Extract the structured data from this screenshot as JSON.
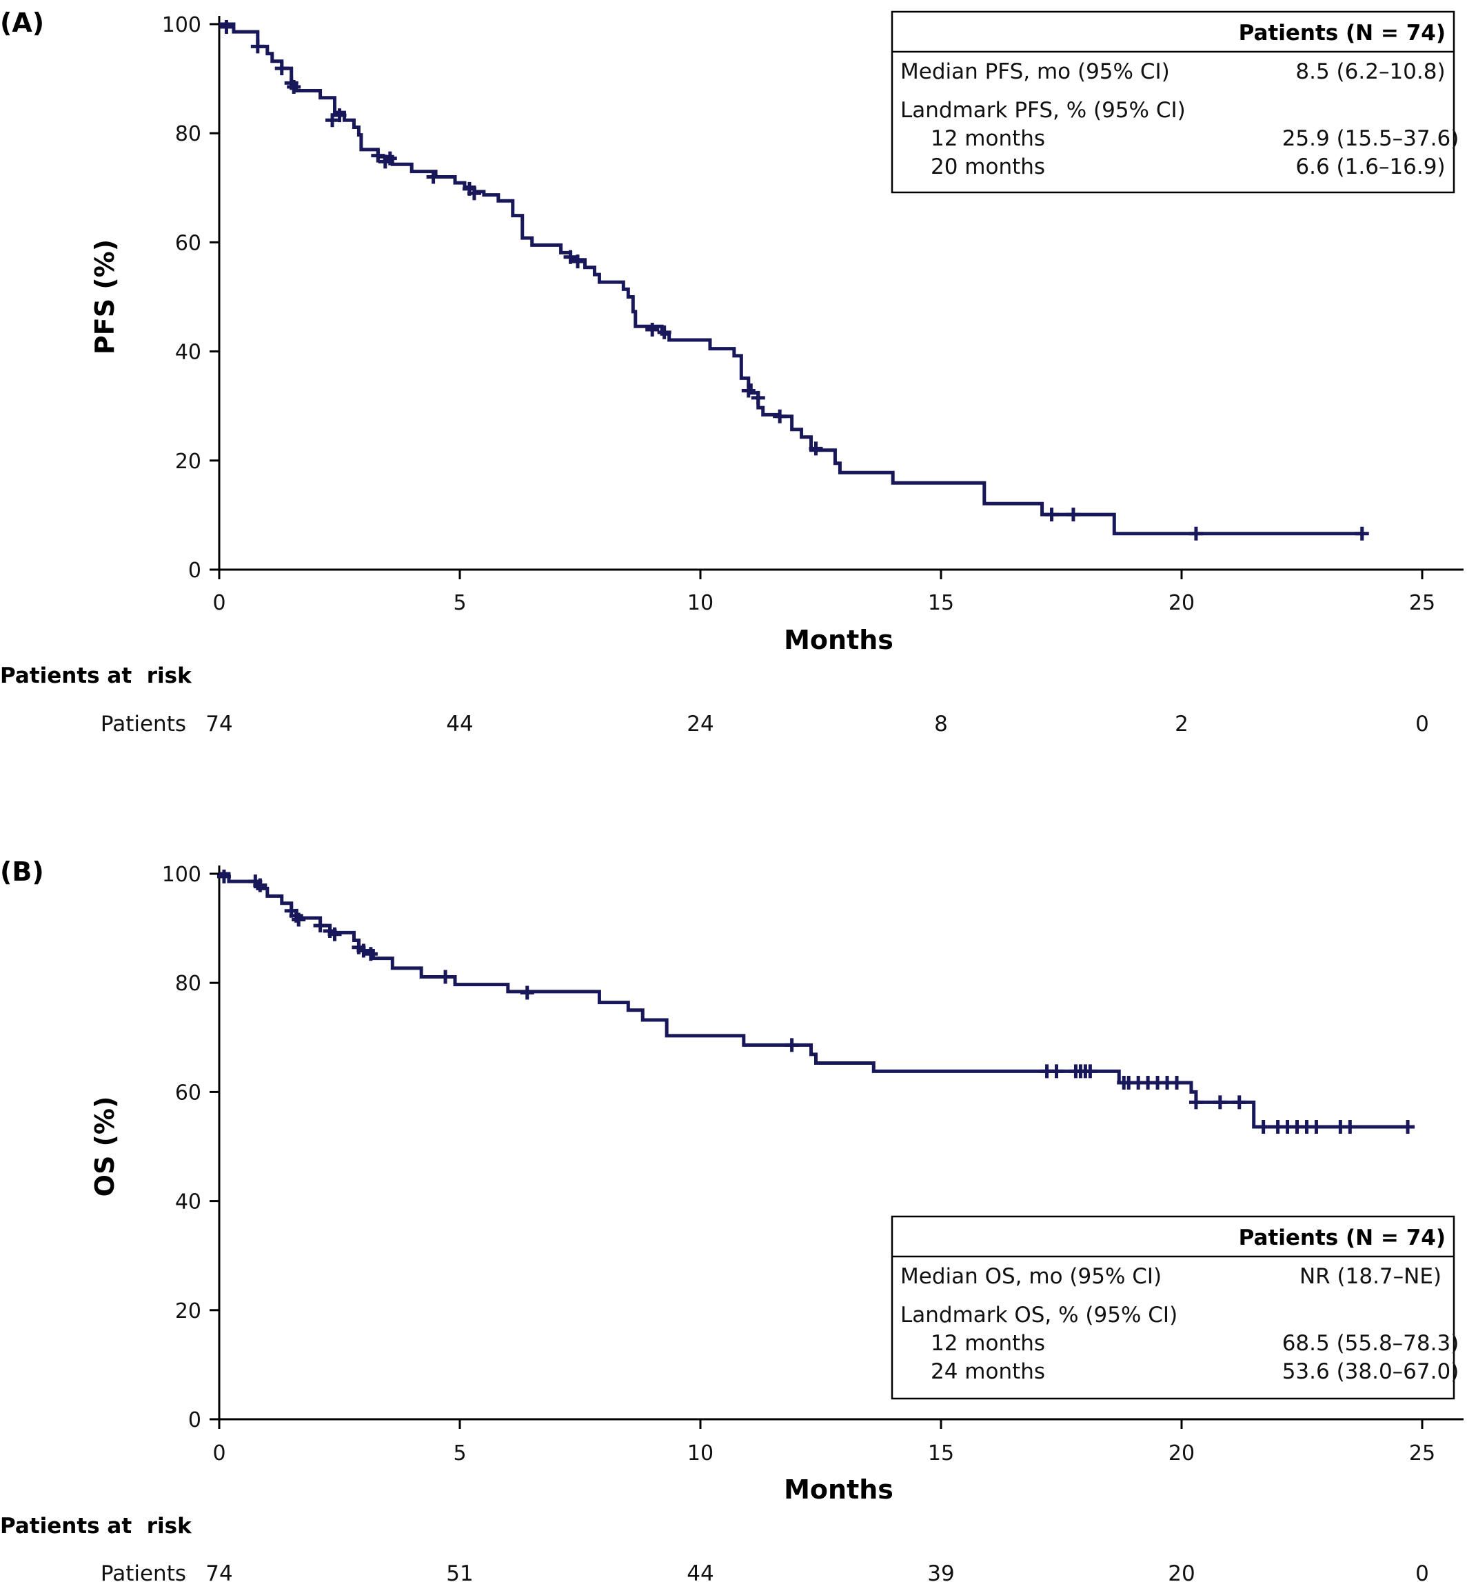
{
  "chart_data": [
    {
      "type": "line",
      "panel_label": "(A)",
      "xlabel": "Months",
      "ylabel": "PFS (%)",
      "xlim": [
        0,
        25
      ],
      "ylim": [
        0,
        100
      ],
      "xticks": [
        0,
        5,
        10,
        15,
        20,
        25
      ],
      "yticks": [
        0,
        20,
        40,
        60,
        80,
        100
      ],
      "grid": false,
      "line_color": "#17175a",
      "series": [
        {
          "steps": [
            [
              0,
              100
            ],
            [
              0.3,
              98.6
            ],
            [
              0.8,
              95.9
            ],
            [
              1.0,
              94.6
            ],
            [
              1.1,
              93.2
            ],
            [
              1.3,
              91.9
            ],
            [
              1.5,
              89.2
            ],
            [
              1.6,
              87.8
            ],
            [
              2.1,
              86.5
            ],
            [
              2.4,
              83.8
            ],
            [
              2.6,
              82.4
            ],
            [
              2.8,
              81.1
            ],
            [
              2.9,
              79.7
            ],
            [
              2.95,
              77.0
            ],
            [
              3.3,
              75.7
            ],
            [
              3.6,
              74.3
            ],
            [
              4.0,
              73.0
            ],
            [
              4.5,
              72.0
            ],
            [
              4.9,
              70.9
            ],
            [
              5.1,
              70.1
            ],
            [
              5.3,
              69.3
            ],
            [
              5.5,
              68.7
            ],
            [
              5.8,
              67.6
            ],
            [
              6.1,
              64.9
            ],
            [
              6.3,
              60.8
            ],
            [
              6.5,
              59.5
            ],
            [
              7.1,
              58.1
            ],
            [
              7.3,
              56.8
            ],
            [
              7.6,
              55.4
            ],
            [
              7.8,
              54.1
            ],
            [
              7.9,
              52.7
            ],
            [
              8.4,
              51.4
            ],
            [
              8.5,
              50.0
            ],
            [
              8.6,
              47.3
            ],
            [
              8.65,
              44.6
            ],
            [
              9.2,
              43.2
            ],
            [
              9.35,
              42.1
            ],
            [
              10.2,
              40.5
            ],
            [
              10.7,
              39.2
            ],
            [
              10.85,
              35.1
            ],
            [
              11.0,
              33.8
            ],
            [
              11.05,
              32.4
            ],
            [
              11.2,
              29.7
            ],
            [
              11.3,
              28.4
            ],
            [
              11.6,
              28.1
            ],
            [
              11.9,
              25.7
            ],
            [
              12.1,
              24.3
            ],
            [
              12.3,
              21.9
            ],
            [
              12.8,
              19.5
            ],
            [
              12.9,
              17.8
            ],
            [
              14.0,
              15.9
            ],
            [
              15.9,
              12.1
            ],
            [
              17.1,
              10.1
            ],
            [
              18.6,
              6.6
            ],
            [
              23.8,
              6.6
            ]
          ],
          "censored": [
            [
              0.15,
              99.5
            ],
            [
              0.8,
              95.9
            ],
            [
              1.3,
              91.9
            ],
            [
              1.5,
              89.2
            ],
            [
              1.55,
              88.5
            ],
            [
              2.35,
              82.4
            ],
            [
              2.5,
              83.3
            ],
            [
              3.3,
              75.9
            ],
            [
              3.45,
              74.8
            ],
            [
              3.55,
              75.4
            ],
            [
              4.45,
              72.0
            ],
            [
              5.2,
              69.8
            ],
            [
              5.3,
              69.0
            ],
            [
              7.3,
              57.3
            ],
            [
              7.45,
              56.5
            ],
            [
              9.0,
              44.0
            ],
            [
              9.25,
              43.5
            ],
            [
              11.0,
              32.8
            ],
            [
              11.2,
              31.5
            ],
            [
              11.65,
              28.1
            ],
            [
              12.4,
              22.2
            ],
            [
              17.3,
              10.1
            ],
            [
              17.75,
              10.1
            ],
            [
              20.3,
              6.6
            ],
            [
              23.75,
              6.6
            ]
          ]
        }
      ],
      "legend_table": {
        "header": "Patients (N = 74)",
        "rows": [
          {
            "label": "Median PFS, mo (95% CI)",
            "value": "8.5 (6.2–10.8)"
          },
          {
            "label": "Landmark PFS, % (95% CI)",
            "value": ""
          },
          {
            "label": "12 months",
            "value": "25.9 (15.5–37.6)",
            "indent": true
          },
          {
            "label": "20 months",
            "value": "6.6 (1.6–16.9)",
            "indent": true
          }
        ]
      },
      "risk_table": {
        "title": "Patients at  risk",
        "row_label": "Patients",
        "values": [
          "74",
          "44",
          "24",
          "8",
          "2",
          "0"
        ],
        "at_months": [
          0,
          5,
          10,
          15,
          20,
          25
        ]
      }
    },
    {
      "type": "line",
      "panel_label": "(B)",
      "xlabel": "Months",
      "ylabel": "OS (%)",
      "xlim": [
        0,
        25
      ],
      "ylim": [
        0,
        100
      ],
      "xticks": [
        0,
        5,
        10,
        15,
        20,
        25
      ],
      "yticks": [
        0,
        20,
        40,
        60,
        80,
        100
      ],
      "grid": false,
      "line_color": "#17175a",
      "series": [
        {
          "steps": [
            [
              0,
              100
            ],
            [
              0.2,
              98.6
            ],
            [
              0.8,
              97.3
            ],
            [
              1.0,
              95.9
            ],
            [
              1.3,
              94.6
            ],
            [
              1.5,
              93.2
            ],
            [
              1.6,
              91.9
            ],
            [
              2.1,
              90.5
            ],
            [
              2.3,
              89.2
            ],
            [
              2.8,
              87.8
            ],
            [
              2.9,
              86.5
            ],
            [
              3.0,
              85.9
            ],
            [
              3.2,
              84.5
            ],
            [
              3.6,
              82.7
            ],
            [
              4.2,
              81.1
            ],
            [
              4.9,
              79.7
            ],
            [
              6.0,
              78.4
            ],
            [
              7.9,
              76.4
            ],
            [
              8.5,
              75.0
            ],
            [
              8.8,
              73.2
            ],
            [
              9.3,
              70.3
            ],
            [
              10.9,
              68.6
            ],
            [
              12.3,
              66.9
            ],
            [
              12.4,
              65.3
            ],
            [
              13.6,
              63.8
            ],
            [
              18.7,
              61.7
            ],
            [
              20.2,
              60.0
            ],
            [
              20.3,
              58.1
            ],
            [
              21.5,
              53.6
            ],
            [
              24.7,
              53.6
            ]
          ],
          "censored": [
            [
              0.1,
              99.5
            ],
            [
              0.75,
              98.6
            ],
            [
              0.85,
              97.9
            ],
            [
              1.5,
              93.2
            ],
            [
              1.6,
              92.3
            ],
            [
              1.65,
              91.6
            ],
            [
              2.1,
              90.5
            ],
            [
              2.3,
              89.5
            ],
            [
              2.4,
              88.9
            ],
            [
              2.9,
              86.5
            ],
            [
              3.0,
              85.9
            ],
            [
              3.15,
              85.3
            ],
            [
              4.7,
              81.1
            ],
            [
              6.4,
              78.2
            ],
            [
              11.9,
              68.6
            ],
            [
              17.2,
              63.8
            ],
            [
              17.4,
              63.8
            ],
            [
              17.8,
              63.8
            ],
            [
              17.9,
              63.8
            ],
            [
              18.0,
              63.8
            ],
            [
              18.1,
              63.8
            ],
            [
              18.8,
              61.7
            ],
            [
              18.9,
              61.7
            ],
            [
              19.1,
              61.7
            ],
            [
              19.3,
              61.7
            ],
            [
              19.5,
              61.7
            ],
            [
              19.7,
              61.7
            ],
            [
              19.9,
              61.7
            ],
            [
              20.3,
              58.1
            ],
            [
              20.8,
              58.1
            ],
            [
              21.2,
              58.1
            ],
            [
              21.7,
              53.6
            ],
            [
              22.0,
              53.6
            ],
            [
              22.2,
              53.6
            ],
            [
              22.4,
              53.6
            ],
            [
              22.6,
              53.6
            ],
            [
              22.8,
              53.6
            ],
            [
              23.3,
              53.6
            ],
            [
              23.5,
              53.6
            ],
            [
              24.7,
              53.6
            ]
          ]
        }
      ],
      "legend_table": {
        "header": "Patients (N = 74)",
        "rows": [
          {
            "label": "Median OS, mo (95% CI)",
            "value": "NR (18.7–NE)"
          },
          {
            "label": "Landmark OS, % (95% CI)",
            "value": ""
          },
          {
            "label": "12 months",
            "value": "68.5 (55.8–78.3)",
            "indent": true
          },
          {
            "label": "24 months",
            "value": "53.6 (38.0–67.0)",
            "indent": true
          }
        ]
      },
      "risk_table": {
        "title": "Patients at  risk",
        "row_label": "Patients",
        "values": [
          "74",
          "51",
          "44",
          "39",
          "20",
          "0"
        ],
        "at_months": [
          0,
          5,
          10,
          15,
          20,
          25
        ]
      }
    }
  ]
}
